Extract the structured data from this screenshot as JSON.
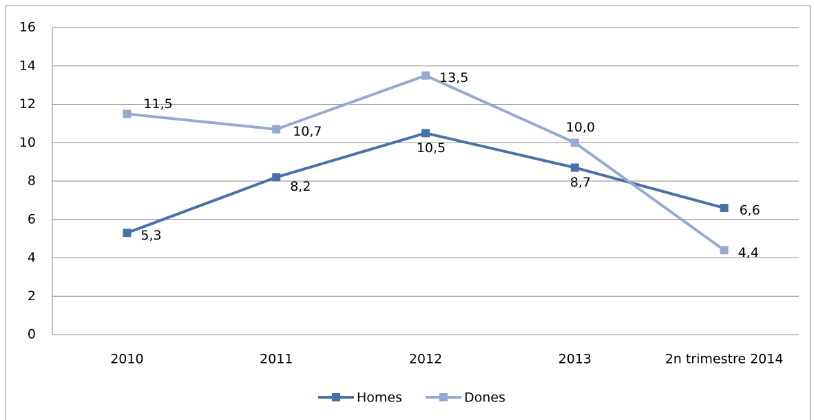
{
  "chart_data": {
    "type": "line",
    "categories": [
      "2010",
      "2011",
      "2012",
      "2013",
      "2n trimestre 2014"
    ],
    "series": [
      {
        "name": "Homes",
        "color": "#4a70a8",
        "values": [
          5.3,
          8.2,
          10.5,
          8.7,
          6.6
        ],
        "value_labels": [
          "5,3",
          "8,2",
          "10,5",
          "8,7",
          "6,6"
        ]
      },
      {
        "name": "Dones",
        "color": "#95a9d1",
        "values": [
          11.5,
          10.7,
          13.5,
          10.0,
          4.4
        ],
        "value_labels": [
          "11,5",
          "10,7",
          "13,5",
          "10,0",
          "4,4"
        ]
      }
    ],
    "ylim": [
      0,
      16
    ],
    "yticks": [
      0,
      2,
      4,
      6,
      8,
      10,
      12,
      14,
      16
    ],
    "grid": true,
    "legend": "bottom"
  }
}
